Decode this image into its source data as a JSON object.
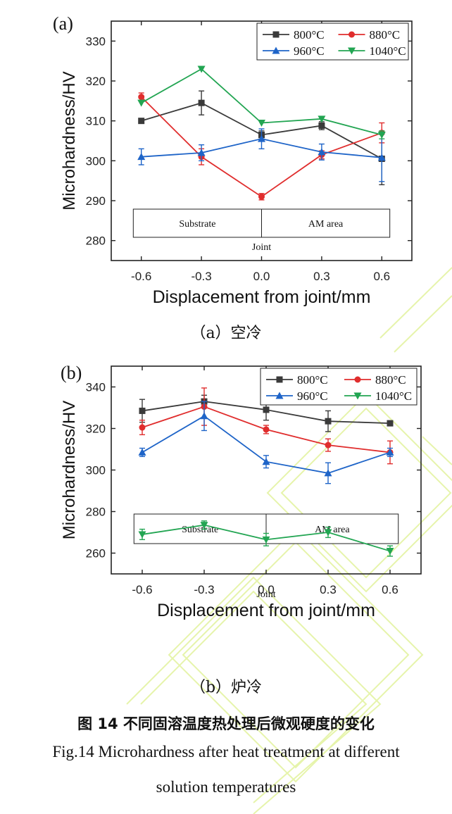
{
  "chart_data": [
    {
      "type": "line",
      "panel_label": "(a)",
      "xlabel": "Displacement from joint/mm",
      "ylabel": "Microhardness/HV",
      "x": [
        -0.6,
        -0.3,
        0.0,
        0.3,
        0.6
      ],
      "xticks": [
        "-0.6",
        "-0.3",
        "0.0",
        "0.3",
        "0.6"
      ],
      "yticks": [
        280,
        290,
        300,
        310,
        320,
        330
      ],
      "ylim": [
        275,
        335
      ],
      "legend_placement": "top-right",
      "series": [
        {
          "name": "800°C",
          "color": "#3a3a3a",
          "marker": "square",
          "values": [
            310,
            314.5,
            306.5,
            308.8,
            300.5
          ],
          "errors": [
            0,
            3,
            1,
            1,
            6.5
          ]
        },
        {
          "name": "880°C",
          "color": "#e02d2d",
          "marker": "circle",
          "values": [
            316,
            301,
            291,
            301.5,
            307
          ],
          "errors": [
            1,
            2,
            0.8,
            1,
            2.5
          ]
        },
        {
          "name": "960°C",
          "color": "#1e64c8",
          "marker": "triangle-up",
          "values": [
            301,
            302,
            305.5,
            302.2,
            300.8
          ],
          "errors": [
            2,
            2,
            2.5,
            2,
            6
          ]
        },
        {
          "name": "1040°C",
          "color": "#22a552",
          "marker": "triangle-down",
          "values": [
            314.5,
            323,
            309.5,
            310.5,
            306.5
          ],
          "errors": [
            0,
            0,
            0,
            0,
            1
          ]
        }
      ],
      "annotation_box": {
        "left": "Substrate",
        "right": "AM area",
        "center": "Joint"
      }
    },
    {
      "type": "line",
      "panel_label": "(b)",
      "xlabel": "Displacement from joint/mm",
      "ylabel": "Microhardness/HV",
      "x": [
        -0.6,
        -0.3,
        0.0,
        0.3,
        0.6
      ],
      "xticks": [
        "-0.6",
        "-0.3",
        "0.0",
        "0.3",
        "0.6"
      ],
      "yticks": [
        260,
        280,
        300,
        320,
        340
      ],
      "ylim": [
        250,
        350
      ],
      "legend_placement": "top-right",
      "series": [
        {
          "name": "800°C",
          "color": "#3a3a3a",
          "marker": "square",
          "values": [
            328.5,
            333,
            329,
            323.5,
            322.5
          ],
          "errors": [
            5.5,
            3,
            5,
            5,
            1
          ]
        },
        {
          "name": "880°C",
          "color": "#e02d2d",
          "marker": "circle",
          "values": [
            320.5,
            330.5,
            319.5,
            312,
            308.5
          ],
          "errors": [
            3.5,
            9,
            2,
            3,
            5.5
          ]
        },
        {
          "name": "960°C",
          "color": "#1e64c8",
          "marker": "triangle-up",
          "values": [
            308.5,
            326,
            304,
            298.5,
            308.5
          ],
          "errors": [
            2,
            7,
            3,
            5,
            2
          ]
        },
        {
          "name": "1040°C",
          "color": "#22a552",
          "marker": "triangle-down",
          "values": [
            269,
            273.5,
            266.5,
            270,
            261
          ],
          "errors": [
            2.5,
            2,
            3,
            2.5,
            2.5
          ]
        }
      ],
      "annotation_box": {
        "left": "Substrate",
        "right": "AM area",
        "center": "Joint"
      }
    }
  ],
  "captions": {
    "panel_a": "（a）空冷",
    "panel_b": "（b）炉冷",
    "figure_cn": "图 14  不同固溶温度热处理后微观硬度的变化",
    "figure_en_line1": "Fig.14 Microhardness after heat treatment at different",
    "figure_en_line2": "solution temperatures"
  }
}
